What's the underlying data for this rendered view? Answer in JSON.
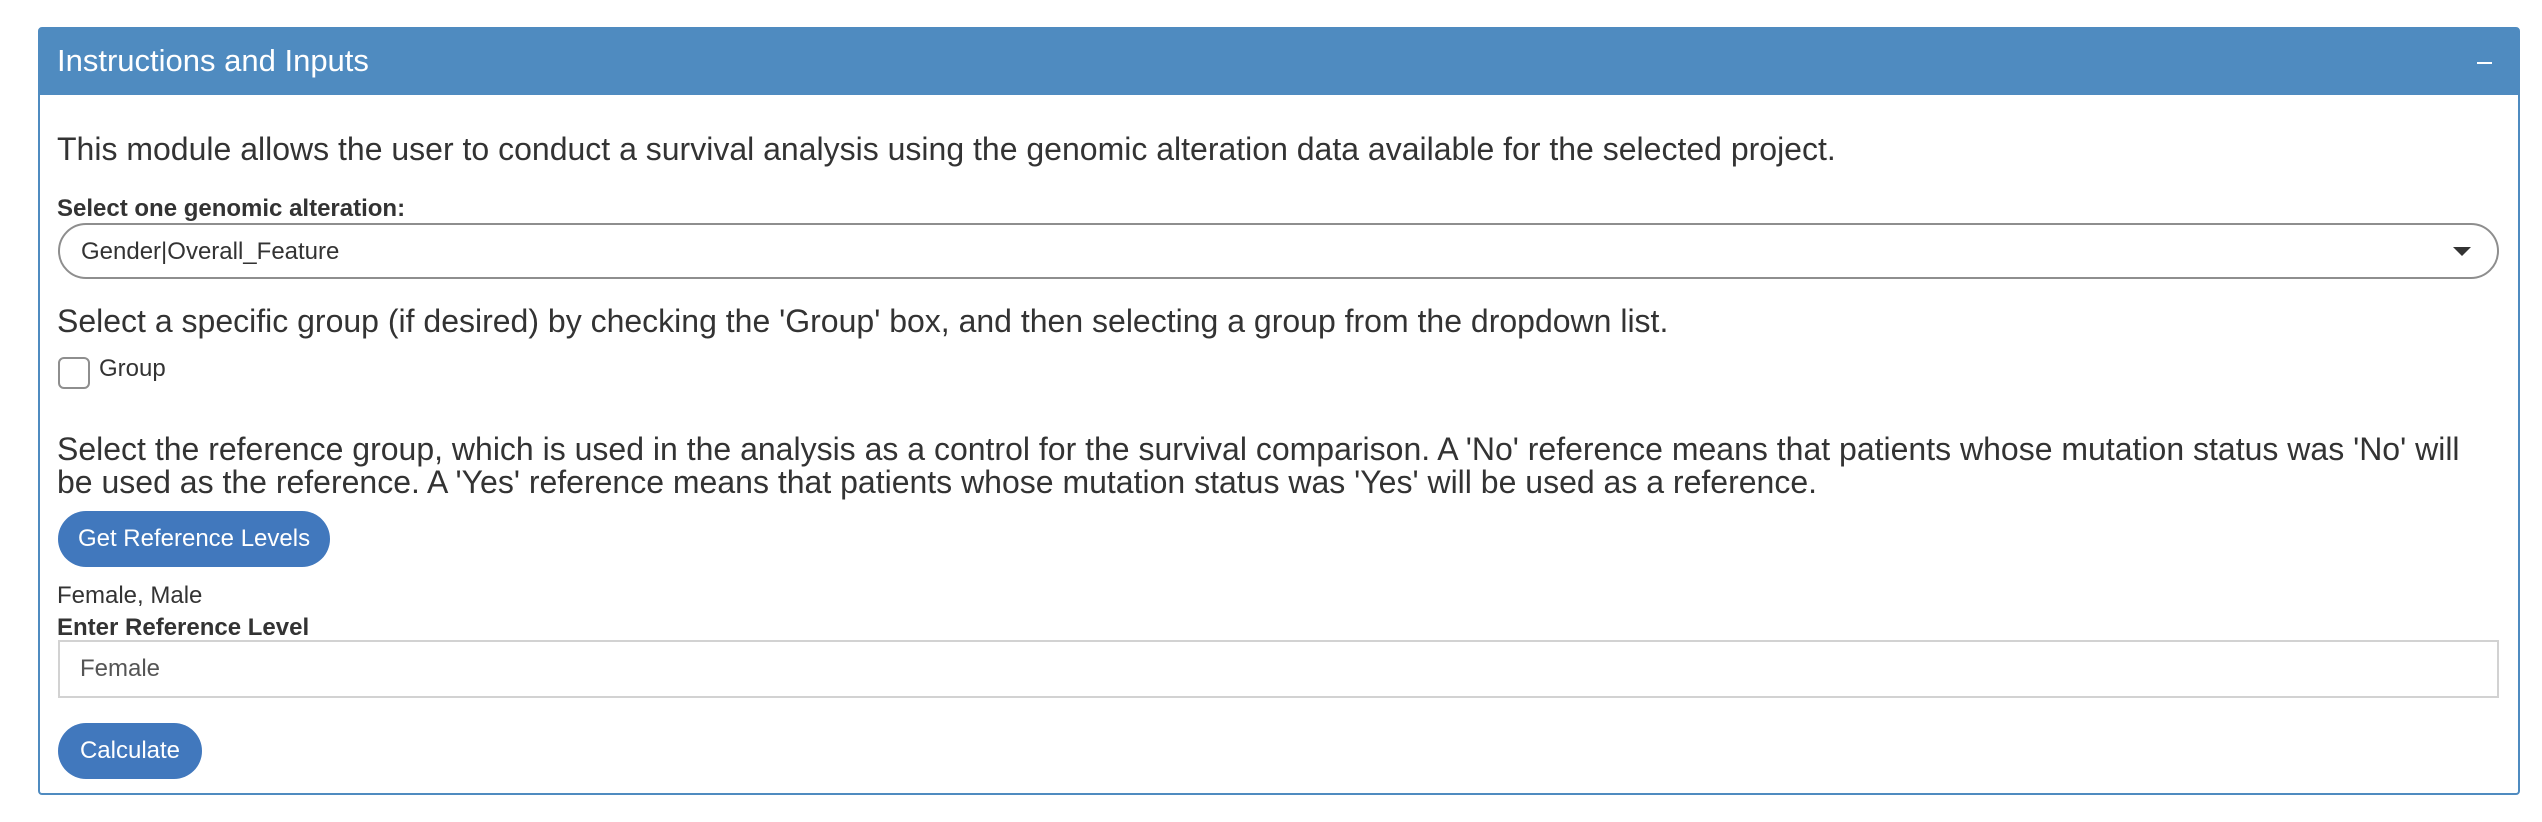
{
  "panel": {
    "title": "Instructions and Inputs",
    "collapse_icon": "minus-icon",
    "colors": {
      "header_background": "#4f8bc0",
      "button_background": "#4178bd"
    }
  },
  "intro_text": "This module allows the user to conduct a survival analysis using the genomic alteration data available for the selected project.",
  "alteration_select": {
    "label": "Select one genomic alteration:",
    "selected_value": "Gender|Overall_Feature",
    "caret_icon": "caret-down-icon"
  },
  "group_section": {
    "help_text": "Select a specific group (if desired) by checking the 'Group' box, and then selecting a group from the dropdown list.",
    "checkbox_label": "Group",
    "checked": false
  },
  "reference_section": {
    "help_text": "Select the reference group, which is used in the analysis as a control for the survival comparison. A 'No' reference means that patients whose mutation status was 'No' will be used as the reference. A 'Yes' reference means that patients whose mutation status was 'Yes' will be used as a reference.",
    "get_levels_button": "Get Reference Levels",
    "levels_output": "Female, Male",
    "input_label": "Enter Reference Level",
    "input_value": "Female"
  },
  "calculate_button": "Calculate"
}
